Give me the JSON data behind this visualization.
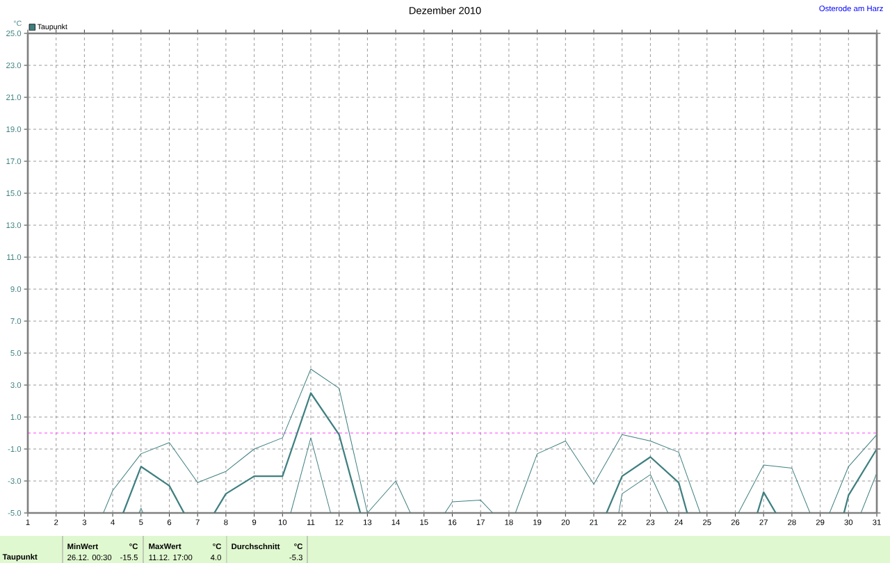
{
  "chart_data": {
    "type": "line",
    "title": "Dezember 2010",
    "ylabel": "°C",
    "annotations": [
      "Osterode am Harz",
      "Taupunkt",
      "MinWert",
      "°C",
      "26.12.  00:30",
      "-15.5",
      "MaxWert",
      "°C",
      "11.12.  17:00",
      "4.0",
      "Durchschnitt",
      "°C",
      "-5.3"
    ],
    "xlim": [
      1,
      31
    ],
    "xticks": [
      1,
      2,
      3,
      4,
      5,
      6,
      7,
      8,
      9,
      10,
      11,
      12,
      13,
      14,
      15,
      16,
      17,
      18,
      19,
      20,
      21,
      22,
      23,
      24,
      25,
      26,
      27,
      28,
      29,
      30,
      31
    ],
    "ylim": [
      -5,
      25
    ],
    "yticks": [
      {
        "value": -5,
        "label": "-5.0"
      },
      {
        "value": -3,
        "label": "-3.0"
      },
      {
        "value": -1,
        "label": "-1.0"
      },
      {
        "value": 1,
        "label": "1.0"
      },
      {
        "value": 3,
        "label": "3.0"
      },
      {
        "value": 5,
        "label": "5.0"
      },
      {
        "value": 7,
        "label": "7.0"
      },
      {
        "value": 9,
        "label": "9.0"
      },
      {
        "value": 11,
        "label": "11.0"
      },
      {
        "value": 13,
        "label": "13.0"
      },
      {
        "value": 15,
        "label": "15.0"
      },
      {
        "value": 17,
        "label": "17.0"
      },
      {
        "value": 19,
        "label": "19.0"
      },
      {
        "value": 21,
        "label": "21.0"
      },
      {
        "value": 23,
        "label": "23.0"
      },
      {
        "value": 25,
        "label": "25.0"
      }
    ],
    "grid": true,
    "legend": "top left",
    "marker": "none",
    "line_style": "solid",
    "ref_lines": [
      {
        "axis": "y",
        "value": 0,
        "color": "#ff00ff",
        "line_style": "dashed"
      }
    ],
    "series": [
      {
        "name": "Taupunkt",
        "color": "#3f7f7f",
        "x": [
          4.37,
          5,
          6,
          6.52,
          7,
          7.59,
          8,
          9,
          10,
          11,
          12,
          12.75,
          17,
          21.45,
          22,
          23,
          24,
          24.3,
          25,
          26.78,
          27,
          27.43,
          28,
          29.84,
          30,
          31
        ],
        "values": [
          -5,
          -2.1,
          -3.3,
          -5,
          null,
          -5,
          -3.8,
          -2.7,
          -2.7,
          2.5,
          -0.1,
          -5,
          null,
          -5,
          -2.7,
          -1.5,
          -3.1,
          -5,
          null,
          -5,
          -3.7,
          -5,
          null,
          -5,
          -3.9,
          -1.0
        ]
      },
      {
        "color": "#3f7f7f",
        "x": [
          3.67,
          4,
          5,
          6,
          7,
          8,
          9,
          10,
          11,
          12,
          13,
          14,
          14.52,
          15,
          15.74,
          16,
          17,
          17.43,
          18,
          18.23,
          19,
          20,
          21,
          22,
          23,
          24,
          24.76,
          25,
          26.11,
          27,
          28,
          28.64,
          29,
          29.33,
          30,
          31
        ],
        "values": [
          -5,
          -3.6,
          -1.3,
          -0.6,
          -3.1,
          -2.4,
          -1.0,
          -0.3,
          4.0,
          2.8,
          -5,
          -3.0,
          -5,
          null,
          -5,
          -4.3,
          -4.2,
          -5,
          null,
          -5,
          -1.3,
          -0.5,
          -3.2,
          -0.1,
          -0.5,
          -1.2,
          -5,
          null,
          -5,
          -2.0,
          -2.2,
          -5,
          null,
          -5,
          -2.1,
          -0.1
        ]
      },
      {
        "color": "#3f7f7f",
        "x": [
          4.93,
          5,
          5.07,
          7,
          10.29,
          11,
          11.7,
          15,
          21.88,
          22,
          23,
          23.62,
          25,
          30.44,
          31
        ],
        "values": [
          -5,
          -4.7,
          -5,
          null,
          -5,
          -0.3,
          -5,
          null,
          -5,
          -3.8,
          -2.6,
          -5,
          null,
          -5,
          -2.5
        ]
      }
    ]
  }
}
